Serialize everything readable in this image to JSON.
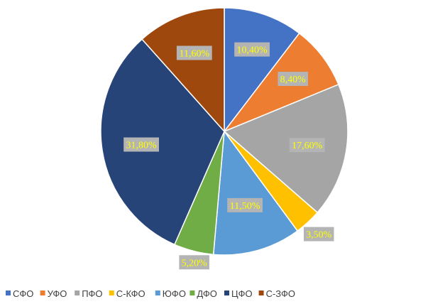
{
  "chart_data": {
    "type": "pie",
    "title": "",
    "legend_position": "bottom",
    "slices": [
      {
        "label": "СФО",
        "value": 10.4,
        "display": "10,40%",
        "color": "#4472c4"
      },
      {
        "label": "УФО",
        "value": 8.4,
        "display": "8,40%",
        "color": "#ed7d31"
      },
      {
        "label": "ПФО",
        "value": 17.6,
        "display": "17,60%",
        "color": "#a5a5a5"
      },
      {
        "label": "С-КФО",
        "value": 3.5,
        "display": "3,50%",
        "color": "#ffc000"
      },
      {
        "label": "ЮФО",
        "value": 11.5,
        "display": "11,50%",
        "color": "#5b9bd5"
      },
      {
        "label": "ДФО",
        "value": 5.2,
        "display": "5,20%",
        "color": "#70ad47"
      },
      {
        "label": "ЦФО",
        "value": 31.8,
        "display": "31,80%",
        "color": "#264478"
      },
      {
        "label": "С-ЗФО",
        "value": 11.6,
        "display": "11,60%",
        "color": "#9e480e"
      }
    ]
  }
}
